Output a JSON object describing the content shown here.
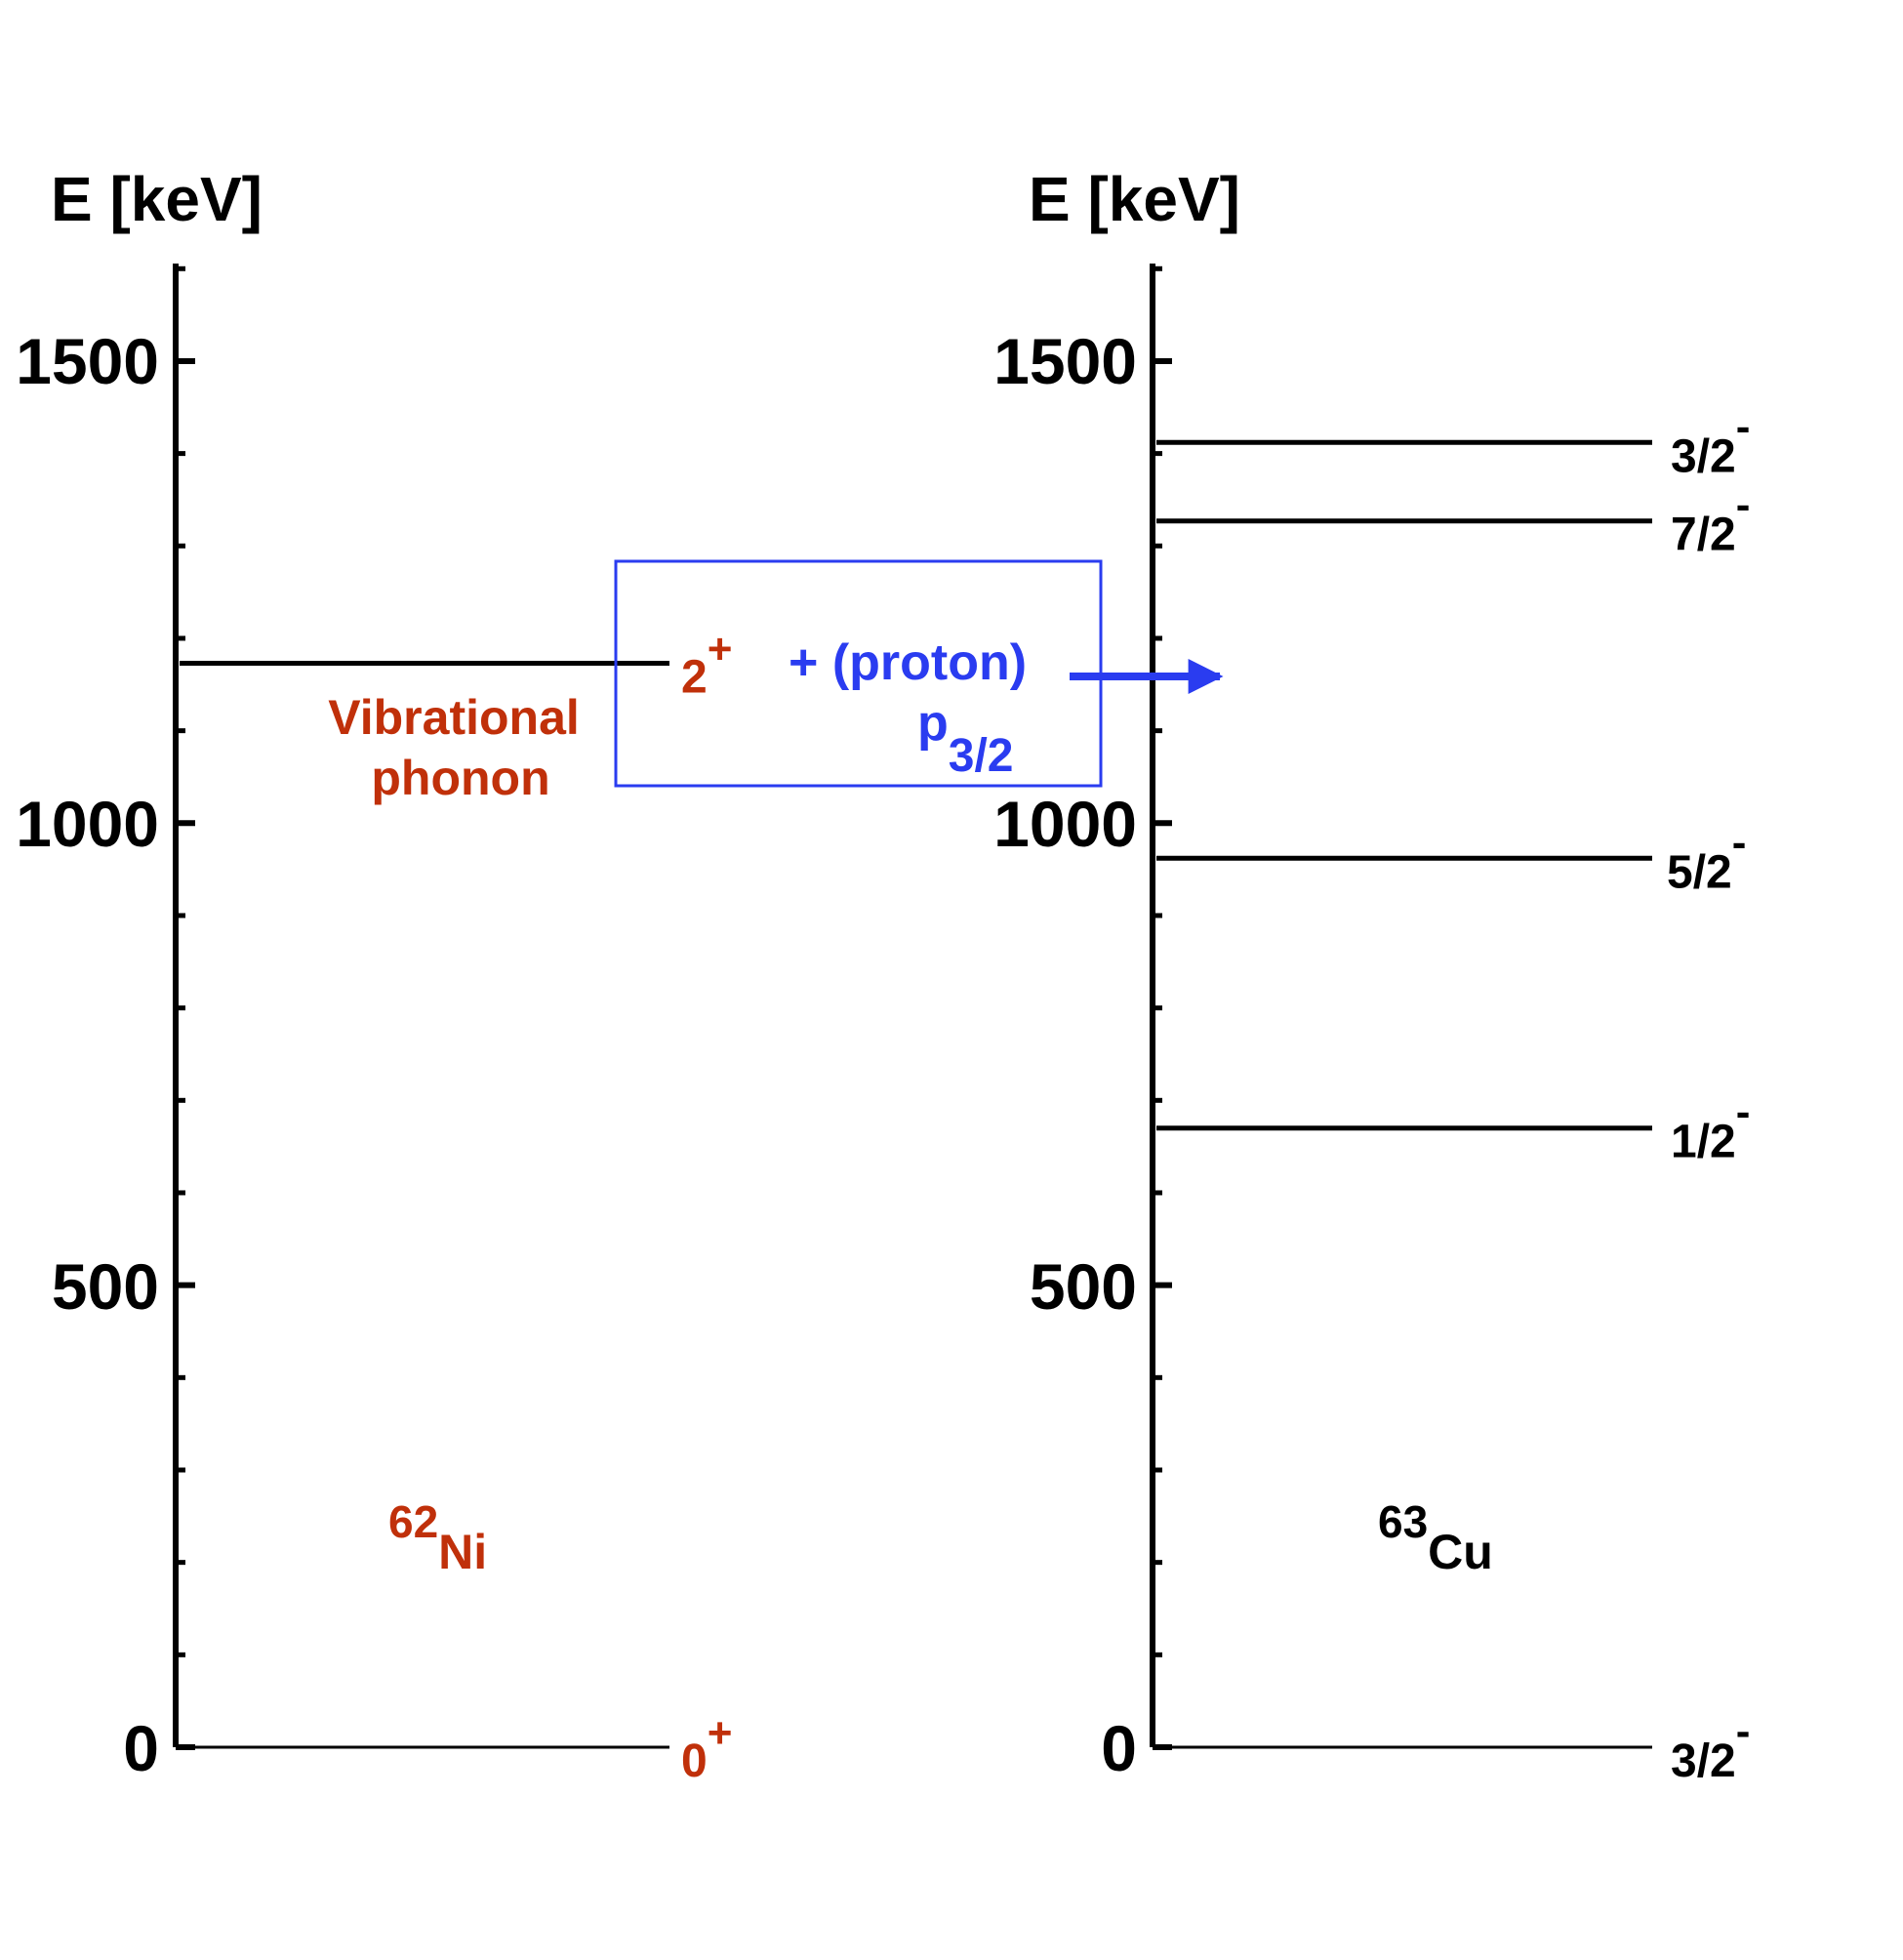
{
  "colors": {
    "black": "#000000",
    "nickel": "#c0300a",
    "proton": "#2a3cf0"
  },
  "panels": [
    {
      "id": "left",
      "axis_title": "E [keV]",
      "tick_labels": [
        "0",
        "500",
        "1000",
        "1500"
      ],
      "nucleus": {
        "mass": "62",
        "symbol": "Ni"
      },
      "levels": [
        {
          "energy": 0,
          "spin": "0",
          "parity": "+"
        },
        {
          "energy": 1173,
          "spin": "2",
          "parity": "+"
        }
      ],
      "annotation": [
        "Vibrational",
        "phonon"
      ]
    },
    {
      "id": "right",
      "axis_title": "E [keV]",
      "tick_labels": [
        "0",
        "500",
        "1000",
        "1500"
      ],
      "nucleus": {
        "mass": "63",
        "symbol": "Cu"
      },
      "levels": [
        {
          "energy": 0,
          "spin": "3/2",
          "parity": "-"
        },
        {
          "energy": 670,
          "spin": "1/2",
          "parity": "-"
        },
        {
          "energy": 962,
          "spin": "5/2",
          "parity": "-"
        },
        {
          "energy": 1327,
          "spin": "7/2",
          "parity": "-"
        },
        {
          "energy": 1412,
          "spin": "3/2",
          "parity": "-"
        }
      ]
    }
  ],
  "coupling_box": {
    "text": "+ (proton)",
    "orbital": "p",
    "orbital_sub": "3/2"
  },
  "axis": {
    "min": 0,
    "max": 1500,
    "major_step": 500,
    "minor_step": 100
  }
}
